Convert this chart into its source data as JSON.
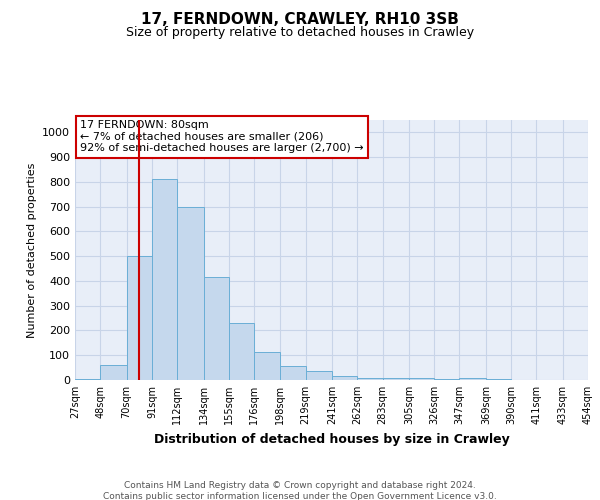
{
  "title1": "17, FERNDOWN, CRAWLEY, RH10 3SB",
  "title2": "Size of property relative to detached houses in Crawley",
  "xlabel": "Distribution of detached houses by size in Crawley",
  "ylabel": "Number of detached properties",
  "footer1": "Contains HM Land Registry data © Crown copyright and database right 2024.",
  "footer2": "Contains public sector information licensed under the Open Government Licence v3.0.",
  "annotation_line1": "17 FERNDOWN: 80sqm",
  "annotation_line2": "← 7% of detached houses are smaller (206)",
  "annotation_line3": "92% of semi-detached houses are larger (2,700) →",
  "property_sqm": 80,
  "bin_labels": [
    "27sqm",
    "48sqm",
    "70sqm",
    "91sqm",
    "112sqm",
    "134sqm",
    "155sqm",
    "176sqm",
    "198sqm",
    "219sqm",
    "241sqm",
    "262sqm",
    "283sqm",
    "305sqm",
    "326sqm",
    "347sqm",
    "369sqm",
    "390sqm",
    "411sqm",
    "433sqm",
    "454sqm"
  ],
  "bin_edges": [
    27,
    48,
    70,
    91,
    112,
    134,
    155,
    176,
    198,
    219,
    241,
    262,
    283,
    305,
    326,
    347,
    369,
    390,
    411,
    433,
    454
  ],
  "bar_heights": [
    5,
    60,
    500,
    810,
    700,
    415,
    230,
    115,
    55,
    35,
    15,
    10,
    8,
    7,
    5,
    8,
    5,
    2,
    0,
    0,
    0
  ],
  "bar_color": "#c5d8ed",
  "bar_edge_color": "#6aaed6",
  "red_line_color": "#cc0000",
  "annotation_box_edge_color": "#cc0000",
  "grid_color": "#c8d4e8",
  "background_color": "#ffffff",
  "axes_bg_color": "#e8eef8",
  "ylim": [
    0,
    1050
  ],
  "yticks": [
    0,
    100,
    200,
    300,
    400,
    500,
    600,
    700,
    800,
    900,
    1000
  ]
}
